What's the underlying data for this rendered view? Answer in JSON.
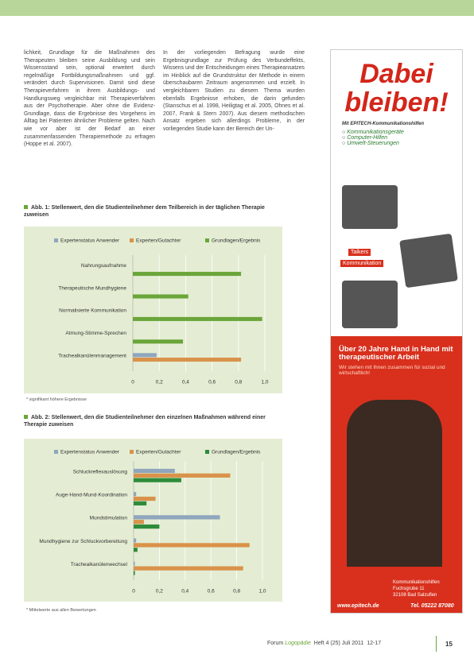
{
  "body": {
    "column_1": "lichkeit, Grundlage für die Maßnahmen des Therapeuten bleiben seine Ausbildung und sein Wissensstand sein, optional erweitert durch regelmäßige Fortbildungsmaßnahmen und ggf. verändert durch Supervisionen. Damit sind diese Therapieverfahren in ihrem Ausbildungs- und Handlungsweg vergleichbar mit Therapieverfahren aus der Psychotherapie. Aber ohne die Evidenz-Grundlage, dass die Ergebnisse des Vorgehens im Alltag bei Patienten ähnlicher Probleme gelten. Nach wie vor aber ist der Bedarf an einer zusammenfassenden Therapiemethode zu erfragen (Hoppe et al. 2007).",
    "column_2": "In der vorliegenden Befragung wurde eine Ergebnisgrundlage zur Prüfung des Verbundeffekts, Wissens und der Entscheidungen eines Therapieansatzes im Hinblick auf die Grundstruktur der Methode in einem überschaubaren Zeitraum angenommen und erzielt. In vergleichbaren Studien zu diesem Thema wurden ebenfalls Ergebnisse erhoben, die darin gefunden (Stanschus et al. 1998, Heiligtag et al. 2005, Ohnes et al. 2007, Frank & Stern 2007). Aus diesem methodischen Ansatz ergeben sich allerdings Probleme, in der vorliegenden Studie kann der Bereich der Un-"
  },
  "chart_data": [
    {
      "type": "bar",
      "title": "Abb. 1: Stellenwert, den die Studienteilnehmer dem Teilbereich in der täglichen Therapie zuweisen",
      "categories": [
        "Nahrungsaufnahme",
        "Therapeutische Mundhygiene",
        "Normalisierte Kommunikation",
        "Atmung-Stimme-Sprechen",
        "Trachealkanülenmanagement"
      ],
      "series": [
        {
          "name": "Expertenstatus Anwender",
          "color": "#8fa6bd",
          "values": [
            0,
            0,
            0,
            0,
            0.18
          ]
        },
        {
          "name": "Experten/Gutachter",
          "color": "#d9924a",
          "values": [
            0,
            0,
            0,
            0,
            0.82
          ]
        },
        {
          "name": "Grundlagen/Ergebnis",
          "color": "#6aa53a",
          "values": [
            0.82,
            0.42,
            0.98,
            0.38,
            0
          ]
        }
      ],
      "xlim": [
        0,
        1
      ],
      "xticks": [
        0,
        {
          "value": 0.2,
          "label": "0,2"
        },
        {
          "value": 0.4,
          "label": "0,4"
        },
        {
          "value": 0.6,
          "label": "0,6"
        },
        {
          "value": 0.8,
          "label": "0,8"
        },
        {
          "value": 1,
          "label": "1,0"
        }
      ],
      "grid": true,
      "footnote": "* signifikant höhere Ergebnisse"
    },
    {
      "type": "bar",
      "title": "Abb. 2: Stellenwert, den die Studienteilnehmer den einzelnen Maßnahmen während einer Therapie zuweisen",
      "categories": [
        "Schluckreflexauslösung",
        "Auge-Hand-Mund-Koordination",
        "Mundstimulation",
        "Mundhygiene zur Schluckvorbereitung",
        "Trachealkanülenwechsel"
      ],
      "series": [
        {
          "name": "Expertenstatus Anwender",
          "color": "#8fa6bd",
          "values": [
            0.32,
            0.02,
            0.67,
            0.02,
            0.01
          ]
        },
        {
          "name": "Experten/Gutachter",
          "color": "#d9924a",
          "values": [
            0.75,
            0.17,
            0.08,
            0.9,
            0.85
          ]
        },
        {
          "name": "Grundlagen/Ergebnis",
          "color": "#2e8b3a",
          "values": [
            0.37,
            0.1,
            0.2,
            0.03,
            0.01
          ]
        }
      ],
      "xlim": [
        0,
        1
      ],
      "xticks": [
        0,
        {
          "value": 0.2,
          "label": "0,2"
        },
        {
          "value": 0.4,
          "label": "0,4"
        },
        {
          "value": 0.6,
          "label": "0,6"
        },
        {
          "value": 0.8,
          "label": "0,8"
        },
        {
          "value": 1,
          "label": "1,0"
        }
      ],
      "grid": true,
      "footnote": "* Mittelwerte aus allen Bewertungen"
    }
  ],
  "ad": {
    "headline_1": "Dabei",
    "headline_2": "bleiben!",
    "subline": "Mit EPITECH-Kommunikationshilfen",
    "bullets": [
      "Kommunikationsgeräte",
      "Computer-Hilfen",
      "Umwelt-Steuerungen"
    ],
    "tags": [
      "Talkers",
      "Kommunikation"
    ],
    "claim": "Über 20 Jahre Hand in Hand mit therapeutischer Arbeit",
    "claim_sub": "Wir stehen mit Ihnen zusammen für sozial und wirtschaftlich!",
    "company": "Kommunikationshilfen",
    "street": "Fuchsgrube 11",
    "city": "32108 Bad Salzuflen",
    "web": "www.epitech.de",
    "phone": "Tel. 05222 87080"
  },
  "footer": {
    "journal": "Forum",
    "journal_name": "Logopädie",
    "issue": "Heft 4 (25) Juli 2011",
    "pages": "12-17",
    "page_number": "15"
  }
}
